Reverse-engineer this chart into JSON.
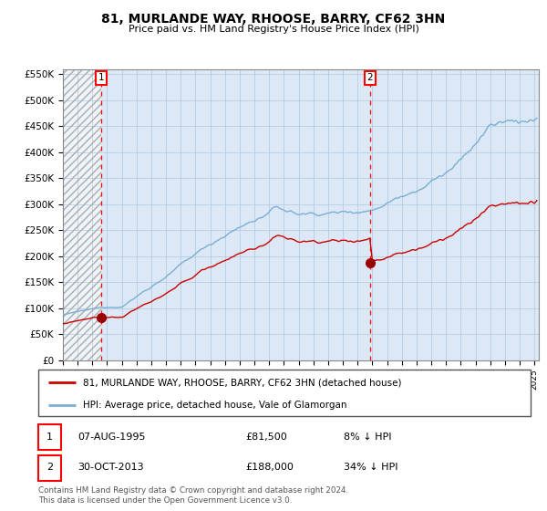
{
  "title": "81, MURLANDE WAY, RHOOSE, BARRY, CF62 3HN",
  "subtitle": "Price paid vs. HM Land Registry's House Price Index (HPI)",
  "ylim": [
    0,
    550000
  ],
  "yticks": [
    0,
    50000,
    100000,
    150000,
    200000,
    250000,
    300000,
    350000,
    400000,
    450000,
    500000,
    550000
  ],
  "ytick_labels": [
    "£0",
    "£50K",
    "£100K",
    "£150K",
    "£200K",
    "£250K",
    "£300K",
    "£350K",
    "£400K",
    "£450K",
    "£500K",
    "£550K"
  ],
  "xlim_start": 1993,
  "xlim_end": 2025.3,
  "sale1_year": 1995.6,
  "sale1_price": 81500,
  "sale2_year": 2013.83,
  "sale2_price": 188000,
  "legend_line1": "81, MURLANDE WAY, RHOOSE, BARRY, CF62 3HN (detached house)",
  "legend_line2": "HPI: Average price, detached house, Vale of Glamorgan",
  "footer": "Contains HM Land Registry data © Crown copyright and database right 2024.\nThis data is licensed under the Open Government Licence v3.0.",
  "line_color_red": "#cc0000",
  "line_color_blue": "#7aafd4",
  "plot_bg": "#dce8f5",
  "grid_color": "#b0c8e0",
  "hatch_color": "#c8d8e8"
}
